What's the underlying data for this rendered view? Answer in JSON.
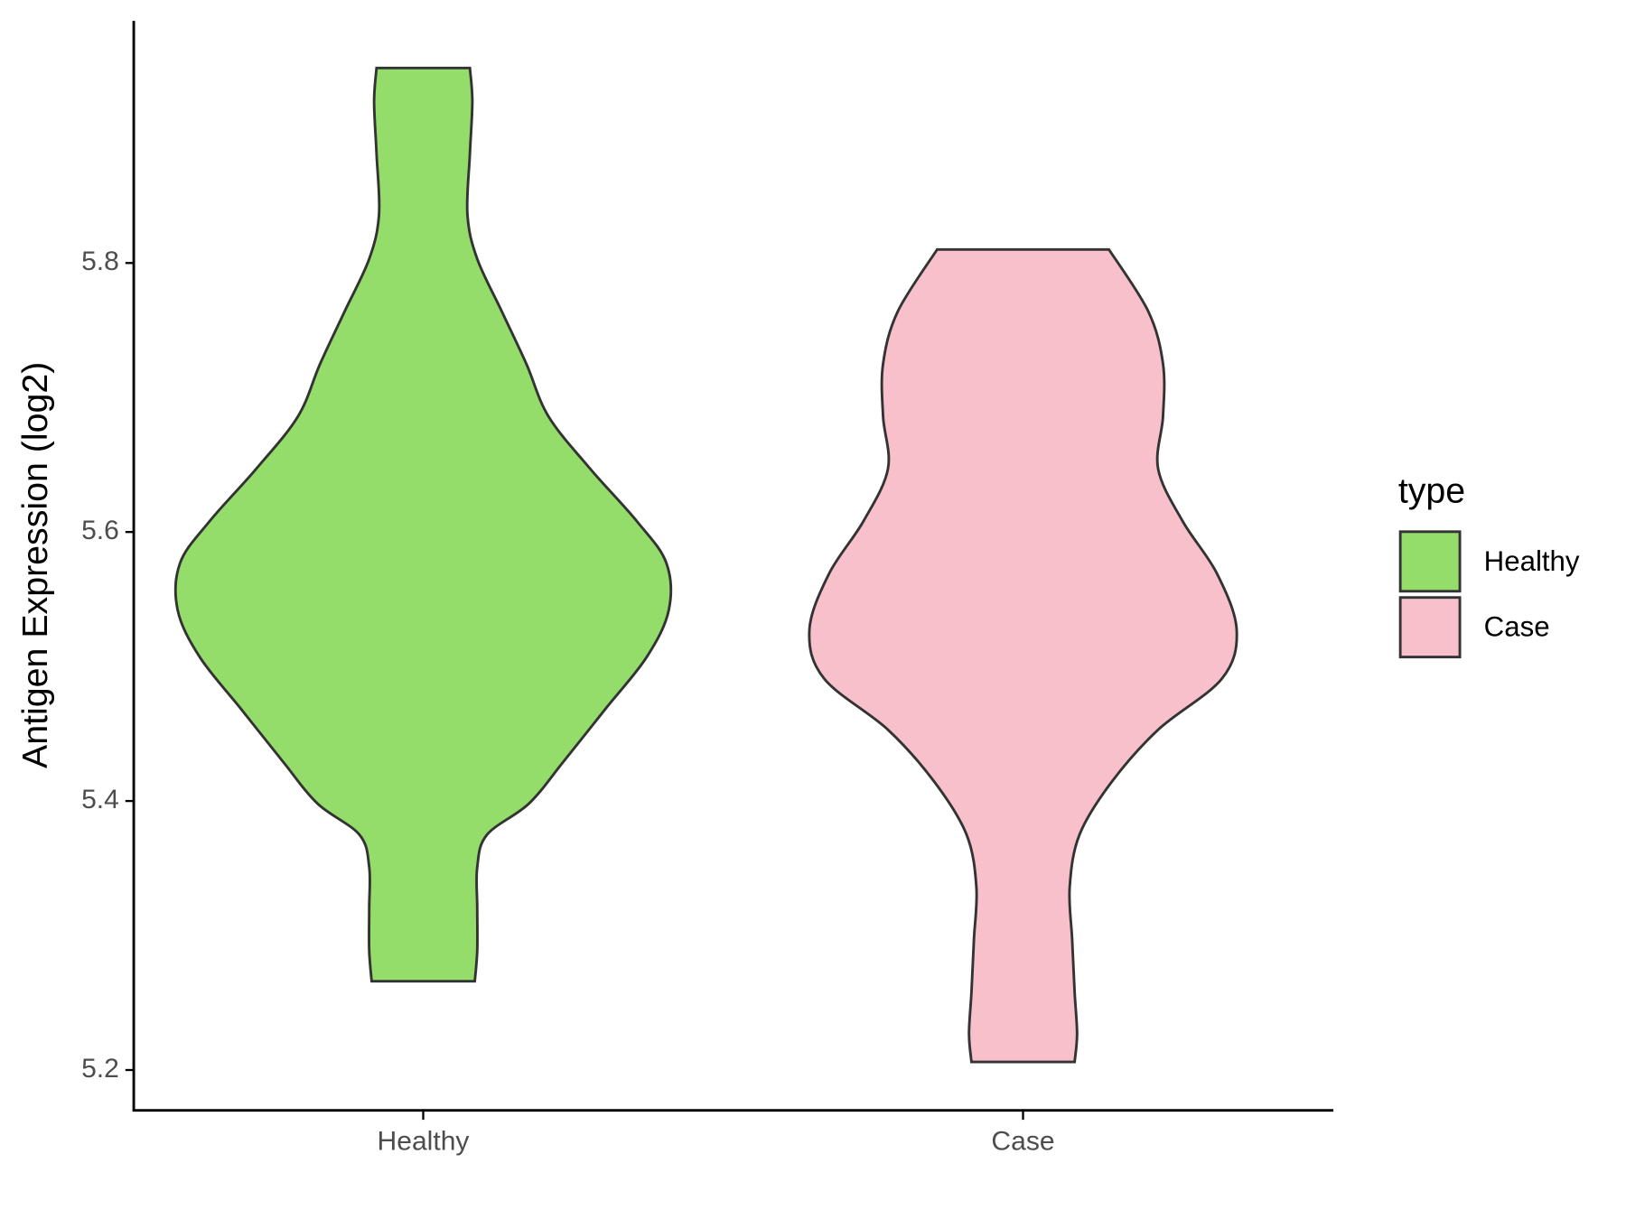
{
  "chart_data": {
    "type": "violin",
    "y_label": "Antigen Expression (log2)",
    "categories": [
      "Healthy",
      "Case"
    ],
    "legend_title": "type",
    "legend_position": "right",
    "ylim": [
      5.17,
      5.98
    ],
    "yticks": [
      5.2,
      5.4,
      5.6,
      5.8
    ],
    "series": [
      {
        "name": "Healthy",
        "color": "#95dd6a",
        "values": [
          5.945,
          5.92,
          5.881,
          5.836,
          5.803,
          5.764,
          5.725,
          5.686,
          5.647,
          5.608,
          5.577,
          5.542,
          5.507,
          5.468,
          5.429,
          5.398,
          5.375,
          5.351,
          5.32,
          5.289,
          5.266
        ],
        "widths": [
          0.19,
          0.2,
          0.19,
          0.18,
          0.22,
          0.32,
          0.42,
          0.51,
          0.68,
          0.87,
          0.99,
          1.0,
          0.91,
          0.74,
          0.57,
          0.43,
          0.26,
          0.22,
          0.22,
          0.22,
          0.21
        ]
      },
      {
        "name": "Case",
        "color": "#f7c0cb",
        "values": [
          5.81,
          5.764,
          5.725,
          5.686,
          5.647,
          5.608,
          5.569,
          5.527,
          5.491,
          5.453,
          5.414,
          5.375,
          5.336,
          5.297,
          5.258,
          5.227,
          5.206
        ],
        "widths": [
          0.35,
          0.51,
          0.57,
          0.57,
          0.55,
          0.65,
          0.79,
          0.87,
          0.81,
          0.55,
          0.36,
          0.23,
          0.19,
          0.2,
          0.21,
          0.22,
          0.21
        ]
      }
    ]
  }
}
